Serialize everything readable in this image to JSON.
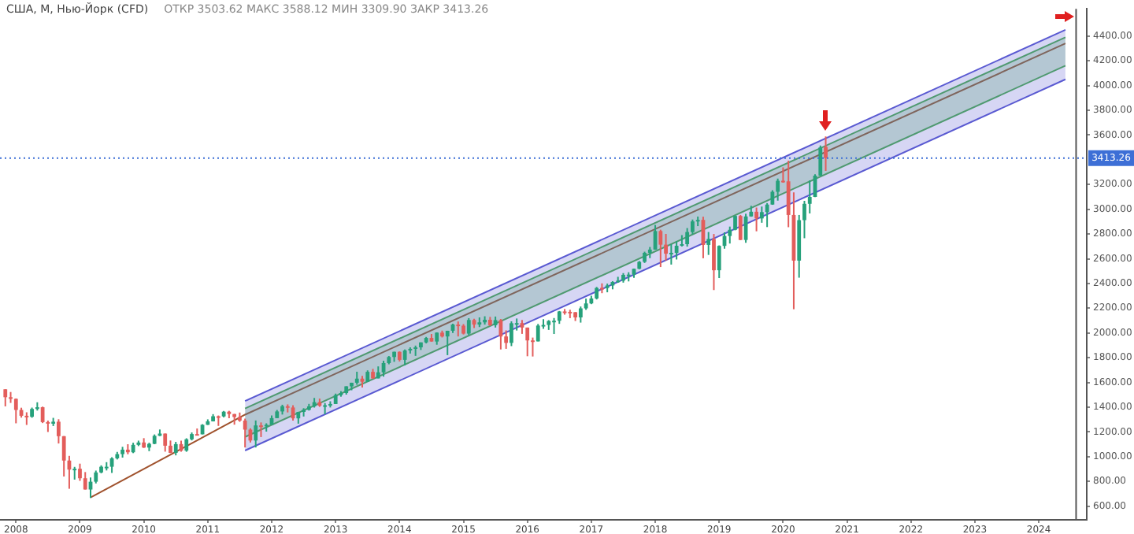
{
  "chart_data": {
    "type": "candlestick",
    "title": "США, M, Нью-Йорк (CFD)",
    "subtitle": "ОТКР 3503.62  МАКС 3588.12  МИН 3309.90  ЗАКР 3413.26",
    "xlim": [
      "2007-10",
      "2024-10"
    ],
    "xticks": [
      "2008",
      "2009",
      "2010",
      "2011",
      "2012",
      "2013",
      "2014",
      "2015",
      "2016",
      "2017",
      "2018",
      "2019",
      "2020",
      "2021",
      "2022",
      "2023",
      "2024"
    ],
    "ylim": [
      490,
      4620
    ],
    "yticks": [
      {
        "value": 600,
        "label": "600.00"
      },
      {
        "value": 800,
        "label": "800.00"
      },
      {
        "value": 1000,
        "label": "1000.00"
      },
      {
        "value": 1200,
        "label": "1200.00"
      },
      {
        "value": 1400,
        "label": "1400.00"
      },
      {
        "value": 1600,
        "label": "1600.00"
      },
      {
        "value": 1800,
        "label": "1800.00"
      },
      {
        "value": 2000,
        "label": "2000.00"
      },
      {
        "value": 2200,
        "label": "2200.00"
      },
      {
        "value": 2400,
        "label": "2400.00"
      },
      {
        "value": 2600,
        "label": "2600.00"
      },
      {
        "value": 2800,
        "label": "2800.00"
      },
      {
        "value": 3000,
        "label": "3000.00"
      },
      {
        "value": 3200,
        "label": "3200.00"
      },
      {
        "value": 3600,
        "label": "3600.00"
      },
      {
        "value": 3800,
        "label": "3800.00"
      },
      {
        "value": 4000,
        "label": "4000.00"
      },
      {
        "value": 4200,
        "label": "4200.00"
      },
      {
        "value": 4400,
        "label": "4400.00"
      }
    ],
    "ref_lines": [
      {
        "axis": "y",
        "value": 3413.26,
        "label": "3413.26",
        "color": "#3d6fd6",
        "line_style": "dotted"
      },
      {
        "axis": "x",
        "value": "2024-08",
        "color": "#555555",
        "line_style": "solid"
      }
    ],
    "series": [
      {
        "type": "line",
        "color": "#5a5ad2",
        "x": [
          "2011-08",
          "2024-06"
        ],
        "values": [
          1050,
          4050
        ],
        "lower": [
          1050,
          4050
        ],
        "upper": [
          1450,
          4450
        ]
      },
      {
        "type": "line",
        "color": "#5a5ad2",
        "x": [
          "2011-08",
          "2024-06"
        ],
        "values": [
          1450,
          4450
        ]
      },
      {
        "type": "line",
        "color": "#4caf50",
        "x": [
          "2011-08",
          "2024-06"
        ],
        "values": [
          1160,
          4160
        ],
        "lower": [
          1160,
          4160
        ],
        "upper": [
          1390,
          4390
        ]
      },
      {
        "type": "line",
        "color": "#4caf50",
        "x": [
          "2011-08",
          "2024-06"
        ],
        "values": [
          1390,
          4390
        ]
      },
      {
        "type": "line",
        "color": "#a0522d",
        "x": [
          "2009-03",
          "2011-08",
          "2024-06"
        ],
        "values": [
          670,
          1340,
          4340
        ]
      },
      {
        "type": "candlestick",
        "x": [
          "2007-11",
          "2007-12",
          "2008-01",
          "2008-02",
          "2008-03",
          "2008-04",
          "2008-05",
          "2008-06",
          "2008-07",
          "2008-08",
          "2008-09",
          "2008-10",
          "2008-11",
          "2008-12",
          "2009-01",
          "2009-02",
          "2009-03",
          "2009-04",
          "2009-05",
          "2009-06",
          "2009-07",
          "2009-08",
          "2009-09",
          "2009-10",
          "2009-11",
          "2009-12",
          "2010-01",
          "2010-02",
          "2010-03",
          "2010-04",
          "2010-05",
          "2010-06",
          "2010-07",
          "2010-08",
          "2010-09",
          "2010-10",
          "2010-11",
          "2010-12",
          "2011-01",
          "2011-02",
          "2011-03",
          "2011-04",
          "2011-05",
          "2011-06",
          "2011-07",
          "2011-08",
          "2011-09",
          "2011-10",
          "2011-11",
          "2011-12",
          "2012-01",
          "2012-02",
          "2012-03",
          "2012-04",
          "2012-05",
          "2012-06",
          "2012-07",
          "2012-08",
          "2012-09",
          "2012-10",
          "2012-11",
          "2012-12",
          "2013-01",
          "2013-02",
          "2013-03",
          "2013-04",
          "2013-05",
          "2013-06",
          "2013-07",
          "2013-08",
          "2013-09",
          "2013-10",
          "2013-11",
          "2013-12",
          "2014-01",
          "2014-02",
          "2014-03",
          "2014-04",
          "2014-05",
          "2014-06",
          "2014-07",
          "2014-08",
          "2014-09",
          "2014-10",
          "2014-11",
          "2014-12",
          "2015-01",
          "2015-02",
          "2015-03",
          "2015-04",
          "2015-05",
          "2015-06",
          "2015-07",
          "2015-08",
          "2015-09",
          "2015-10",
          "2015-11",
          "2015-12",
          "2016-01",
          "2016-02",
          "2016-03",
          "2016-04",
          "2016-05",
          "2016-06",
          "2016-07",
          "2016-08",
          "2016-09",
          "2016-10",
          "2016-11",
          "2016-12",
          "2017-01",
          "2017-02",
          "2017-03",
          "2017-04",
          "2017-05",
          "2017-06",
          "2017-07",
          "2017-08",
          "2017-09",
          "2017-10",
          "2017-11",
          "2017-12",
          "2018-01",
          "2018-02",
          "2018-03",
          "2018-04",
          "2018-05",
          "2018-06",
          "2018-07",
          "2018-08",
          "2018-09",
          "2018-10",
          "2018-11",
          "2018-12",
          "2019-01",
          "2019-02",
          "2019-03",
          "2019-04",
          "2019-05",
          "2019-06",
          "2019-07",
          "2019-08",
          "2019-09",
          "2019-10",
          "2019-11",
          "2019-12",
          "2020-01",
          "2020-02",
          "2020-03",
          "2020-04",
          "2020-05",
          "2020-06",
          "2020-07",
          "2020-08",
          "2020-09"
        ],
        "ohlc": [
          [
            1545,
            1545,
            1407,
            1481
          ],
          [
            1481,
            1523,
            1435,
            1468
          ],
          [
            1468,
            1471,
            1270,
            1378
          ],
          [
            1378,
            1396,
            1316,
            1331
          ],
          [
            1331,
            1359,
            1257,
            1323
          ],
          [
            1323,
            1397,
            1315,
            1386
          ],
          [
            1386,
            1440,
            1373,
            1400
          ],
          [
            1400,
            1405,
            1272,
            1280
          ],
          [
            1280,
            1292,
            1200,
            1267
          ],
          [
            1267,
            1314,
            1248,
            1283
          ],
          [
            1283,
            1303,
            1107,
            1166
          ],
          [
            1166,
            1167,
            840,
            969
          ],
          [
            969,
            1007,
            741,
            896
          ],
          [
            896,
            918,
            815,
            903
          ],
          [
            903,
            944,
            805,
            826
          ],
          [
            826,
            876,
            735,
            735
          ],
          [
            735,
            832,
            667,
            798
          ],
          [
            798,
            888,
            784,
            873
          ],
          [
            873,
            930,
            866,
            919
          ],
          [
            919,
            956,
            889,
            919
          ],
          [
            919,
            996,
            869,
            987
          ],
          [
            987,
            1039,
            978,
            1021
          ],
          [
            1021,
            1080,
            993,
            1057
          ],
          [
            1057,
            1101,
            1020,
            1036
          ],
          [
            1036,
            1113,
            1029,
            1096
          ],
          [
            1096,
            1130,
            1086,
            1115
          ],
          [
            1115,
            1150,
            1071,
            1074
          ],
          [
            1074,
            1113,
            1045,
            1104
          ],
          [
            1104,
            1180,
            1101,
            1169
          ],
          [
            1169,
            1220,
            1167,
            1187
          ],
          [
            1187,
            1188,
            1041,
            1089
          ],
          [
            1089,
            1131,
            1029,
            1031
          ],
          [
            1031,
            1120,
            1011,
            1102
          ],
          [
            1102,
            1129,
            1040,
            1049
          ],
          [
            1049,
            1149,
            1040,
            1141
          ],
          [
            1141,
            1196,
            1132,
            1183
          ],
          [
            1183,
            1228,
            1174,
            1181
          ],
          [
            1181,
            1263,
            1181,
            1258
          ],
          [
            1258,
            1302,
            1257,
            1286
          ],
          [
            1286,
            1344,
            1285,
            1327
          ],
          [
            1327,
            1333,
            1249,
            1326
          ],
          [
            1326,
            1370,
            1318,
            1364
          ],
          [
            1364,
            1371,
            1311,
            1345
          ],
          [
            1345,
            1346,
            1259,
            1321
          ],
          [
            1321,
            1357,
            1282,
            1292
          ],
          [
            1292,
            1308,
            1075,
            1219
          ],
          [
            1219,
            1230,
            1115,
            1131
          ],
          [
            1131,
            1293,
            1075,
            1253
          ],
          [
            1253,
            1277,
            1159,
            1247
          ],
          [
            1247,
            1270,
            1203,
            1258
          ],
          [
            1258,
            1333,
            1258,
            1312
          ],
          [
            1312,
            1378,
            1312,
            1366
          ],
          [
            1366,
            1420,
            1341,
            1408
          ],
          [
            1408,
            1423,
            1358,
            1398
          ],
          [
            1398,
            1416,
            1292,
            1310
          ],
          [
            1310,
            1363,
            1267,
            1362
          ],
          [
            1362,
            1392,
            1325,
            1379
          ],
          [
            1379,
            1427,
            1373,
            1407
          ],
          [
            1407,
            1475,
            1397,
            1441
          ],
          [
            1441,
            1470,
            1403,
            1412
          ],
          [
            1412,
            1434,
            1343,
            1416
          ],
          [
            1416,
            1448,
            1398,
            1426
          ],
          [
            1426,
            1510,
            1426,
            1498
          ],
          [
            1498,
            1530,
            1485,
            1515
          ],
          [
            1515,
            1570,
            1502,
            1569
          ],
          [
            1569,
            1598,
            1537,
            1598
          ],
          [
            1598,
            1687,
            1582,
            1631
          ],
          [
            1631,
            1654,
            1560,
            1606
          ],
          [
            1606,
            1698,
            1605,
            1686
          ],
          [
            1686,
            1710,
            1630,
            1633
          ],
          [
            1633,
            1730,
            1633,
            1682
          ],
          [
            1682,
            1776,
            1647,
            1757
          ],
          [
            1757,
            1814,
            1747,
            1806
          ],
          [
            1806,
            1849,
            1767,
            1848
          ],
          [
            1848,
            1851,
            1770,
            1783
          ],
          [
            1783,
            1867,
            1738,
            1859
          ],
          [
            1859,
            1884,
            1834,
            1872
          ],
          [
            1872,
            1898,
            1815,
            1884
          ],
          [
            1884,
            1924,
            1863,
            1924
          ],
          [
            1924,
            1968,
            1916,
            1960
          ],
          [
            1960,
            1992,
            1930,
            1931
          ],
          [
            1931,
            2005,
            1905,
            2003
          ],
          [
            2003,
            2019,
            1964,
            1972
          ],
          [
            1972,
            2018,
            1821,
            2018
          ],
          [
            2018,
            2075,
            2001,
            2068
          ],
          [
            2068,
            2093,
            1972,
            2059
          ],
          [
            2059,
            2072,
            1988,
            1995
          ],
          [
            1995,
            2120,
            1981,
            2105
          ],
          [
            2105,
            2115,
            2040,
            2068
          ],
          [
            2068,
            2126,
            2048,
            2086
          ],
          [
            2086,
            2135,
            2068,
            2107
          ],
          [
            2107,
            2130,
            2057,
            2063
          ],
          [
            2063,
            2133,
            2044,
            2104
          ],
          [
            2104,
            2113,
            1867,
            1972
          ],
          [
            1972,
            2021,
            1872,
            1920
          ],
          [
            1920,
            2094,
            1894,
            2079
          ],
          [
            2079,
            2117,
            2020,
            2080
          ],
          [
            2080,
            2105,
            1993,
            2044
          ],
          [
            2044,
            2044,
            1812,
            1940
          ],
          [
            1940,
            1963,
            1810,
            1932
          ],
          [
            1932,
            2073,
            1932,
            2060
          ],
          [
            2060,
            2111,
            2034,
            2065
          ],
          [
            2065,
            2104,
            2025,
            2097
          ],
          [
            2097,
            2121,
            1992,
            2099
          ],
          [
            2099,
            2178,
            2074,
            2174
          ],
          [
            2174,
            2194,
            2148,
            2171
          ],
          [
            2171,
            2188,
            2120,
            2168
          ],
          [
            2168,
            2169,
            2097,
            2126
          ],
          [
            2126,
            2214,
            2084,
            2199
          ],
          [
            2199,
            2278,
            2187,
            2239
          ],
          [
            2239,
            2301,
            2233,
            2279
          ],
          [
            2279,
            2372,
            2271,
            2364
          ],
          [
            2364,
            2401,
            2322,
            2363
          ],
          [
            2363,
            2399,
            2329,
            2384
          ],
          [
            2384,
            2419,
            2353,
            2412
          ],
          [
            2412,
            2454,
            2406,
            2423
          ],
          [
            2423,
            2484,
            2407,
            2470
          ],
          [
            2470,
            2491,
            2417,
            2472
          ],
          [
            2472,
            2520,
            2446,
            2519
          ],
          [
            2519,
            2582,
            2515,
            2575
          ],
          [
            2575,
            2657,
            2566,
            2648
          ],
          [
            2648,
            2695,
            2605,
            2674
          ],
          [
            2674,
            2873,
            2673,
            2824
          ],
          [
            2824,
            2835,
            2533,
            2714
          ],
          [
            2714,
            2801,
            2585,
            2641
          ],
          [
            2641,
            2718,
            2553,
            2648
          ],
          [
            2648,
            2742,
            2594,
            2705
          ],
          [
            2705,
            2791,
            2699,
            2718
          ],
          [
            2718,
            2848,
            2698,
            2816
          ],
          [
            2816,
            2917,
            2796,
            2902
          ],
          [
            2902,
            2941,
            2864,
            2914
          ],
          [
            2914,
            2940,
            2604,
            2712
          ],
          [
            2712,
            2816,
            2631,
            2760
          ],
          [
            2760,
            2800,
            2347,
            2507
          ],
          [
            2507,
            2708,
            2444,
            2704
          ],
          [
            2704,
            2814,
            2681,
            2784
          ],
          [
            2784,
            2860,
            2723,
            2834
          ],
          [
            2834,
            2949,
            2830,
            2946
          ],
          [
            2946,
            2954,
            2751,
            2752
          ],
          [
            2752,
            2964,
            2729,
            2942
          ],
          [
            2942,
            3028,
            2940,
            2980
          ],
          [
            2980,
            3014,
            2822,
            2926
          ],
          [
            2926,
            3022,
            2891,
            2977
          ],
          [
            2977,
            3050,
            2856,
            3038
          ],
          [
            3038,
            3154,
            3036,
            3141
          ],
          [
            3141,
            3248,
            3070,
            3231
          ],
          [
            3231,
            3338,
            3214,
            3226
          ],
          [
            3226,
            3393,
            2855,
            2954
          ],
          [
            2954,
            3136,
            2192,
            2585
          ],
          [
            2585,
            2954,
            2447,
            2912
          ],
          [
            2912,
            3068,
            2766,
            3044
          ],
          [
            3044,
            3233,
            2966,
            3100
          ],
          [
            3100,
            3283,
            3098,
            3271
          ],
          [
            3271,
            3515,
            3268,
            3500
          ],
          [
            3503.62,
            3588.12,
            3309.9,
            3413.26
          ]
        ],
        "colors": [
          "#e35d5b",
          "#e35d5b",
          "#e35d5b",
          "#e35d5b",
          "#e35d5b",
          "#26a17b",
          "#26a17b",
          "#e35d5b",
          "#e35d5b",
          "#26a17b",
          "#e35d5b",
          "#e35d5b",
          "#e35d5b",
          "#26a17b",
          "#e35d5b",
          "#e35d5b",
          "#26a17b",
          "#26a17b",
          "#26a17b",
          "#26a17b",
          "#26a17b",
          "#26a17b",
          "#26a17b",
          "#e35d5b",
          "#26a17b",
          "#26a17b",
          "#e35d5b",
          "#26a17b",
          "#26a17b",
          "#26a17b",
          "#e35d5b",
          "#e35d5b",
          "#26a17b",
          "#e35d5b",
          "#26a17b",
          "#26a17b",
          "#e35d5b",
          "#26a17b",
          "#26a17b",
          "#26a17b",
          "#e35d5b",
          "#26a17b",
          "#e35d5b",
          "#e35d5b",
          "#e35d5b",
          "#e35d5b",
          "#e35d5b",
          "#26a17b",
          "#e35d5b",
          "#26a17b",
          "#26a17b",
          "#26a17b",
          "#26a17b",
          "#e35d5b",
          "#e35d5b",
          "#26a17b",
          "#26a17b",
          "#26a17b",
          "#26a17b",
          "#e35d5b",
          "#26a17b",
          "#26a17b",
          "#26a17b",
          "#26a17b",
          "#26a17b",
          "#26a17b",
          "#26a17b",
          "#e35d5b",
          "#26a17b",
          "#e35d5b",
          "#26a17b",
          "#26a17b",
          "#26a17b",
          "#26a17b",
          "#e35d5b",
          "#26a17b",
          "#26a17b",
          "#26a17b",
          "#26a17b",
          "#26a17b",
          "#e35d5b",
          "#26a17b",
          "#e35d5b",
          "#26a17b",
          "#26a17b",
          "#e35d5b",
          "#e35d5b",
          "#26a17b",
          "#e35d5b",
          "#26a17b",
          "#26a17b",
          "#e35d5b",
          "#26a17b",
          "#e35d5b",
          "#e35d5b",
          "#26a17b",
          "#26a17b",
          "#e35d5b",
          "#e35d5b",
          "#e35d5b",
          "#26a17b",
          "#26a17b",
          "#26a17b",
          "#26a17b",
          "#26a17b",
          "#e35d5b",
          "#e35d5b",
          "#e35d5b",
          "#26a17b",
          "#26a17b",
          "#26a17b",
          "#26a17b",
          "#e35d5b",
          "#26a17b",
          "#26a17b",
          "#26a17b",
          "#26a17b",
          "#26a17b",
          "#26a17b",
          "#26a17b",
          "#26a17b",
          "#26a17b",
          "#26a17b",
          "#e35d5b",
          "#e35d5b",
          "#26a17b",
          "#26a17b",
          "#26a17b",
          "#26a17b",
          "#26a17b",
          "#26a17b",
          "#e35d5b",
          "#26a17b",
          "#e35d5b",
          "#26a17b",
          "#26a17b",
          "#26a17b",
          "#26a17b",
          "#e35d5b",
          "#26a17b",
          "#26a17b",
          "#e35d5b",
          "#26a17b",
          "#26a17b",
          "#26a17b",
          "#26a17b",
          "#e35d5b",
          "#e35d5b",
          "#e35d5b",
          "#26a17b",
          "#26a17b",
          "#26a17b",
          "#26a17b",
          "#26a17b",
          "#e35d5b"
        ]
      }
    ]
  }
}
